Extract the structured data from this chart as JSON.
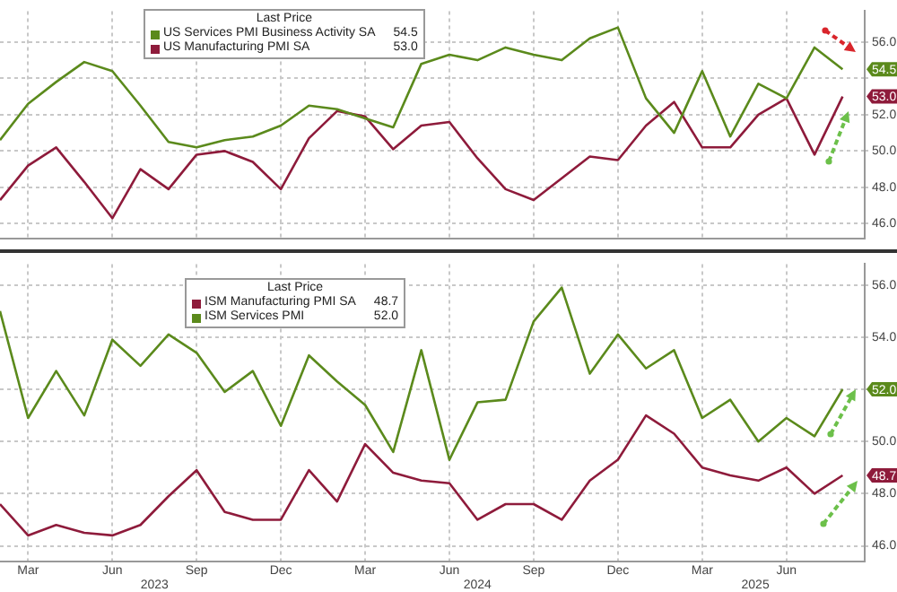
{
  "chart_data": [
    {
      "type": "line",
      "legend": "top left",
      "legend_title": "Last Price",
      "grid": true,
      "tick_labels": "y",
      "x": [
        "2023-02",
        "2023-03",
        "2023-04",
        "2023-05",
        "2023-06",
        "2023-07",
        "2023-08",
        "2023-09",
        "2023-10",
        "2023-11",
        "2023-12",
        "2024-01",
        "2024-02",
        "2024-03",
        "2024-04",
        "2024-05",
        "2024-06",
        "2024-07",
        "2024-08",
        "2024-09",
        "2024-10",
        "2024-11",
        "2024-12",
        "2025-01",
        "2025-02",
        "2025-03",
        "2025-04",
        "2025-05",
        "2025-06",
        "2025-07",
        "2025-08"
      ],
      "xlim": [
        "2023-02",
        "2025-08-25"
      ],
      "xticks": [
        {
          "value": "2023-03",
          "label": null
        },
        {
          "value": "2023-06",
          "label": null
        },
        {
          "value": "2023-09",
          "label": null
        },
        {
          "value": "2023-12",
          "label": null
        },
        {
          "value": "2024-03",
          "label": null
        },
        {
          "value": "2024-06",
          "label": null
        },
        {
          "value": "2024-09",
          "label": null
        },
        {
          "value": "2024-12",
          "label": null
        },
        {
          "value": "2025-03",
          "label": null
        },
        {
          "value": "2025-06",
          "label": null
        }
      ],
      "annotations": [
        "54.5",
        "53.0"
      ],
      "ylim": [
        45.2,
        57.7
      ],
      "yticks": [
        {
          "value": 46,
          "label": "46.0"
        },
        {
          "value": 48,
          "label": "48.0"
        },
        {
          "value": 50,
          "label": "50.0"
        },
        {
          "value": 52,
          "label": "52.0"
        },
        {
          "value": 54,
          "label": null
        },
        {
          "value": 56,
          "label": "56.0"
        }
      ],
      "series": [
        {
          "name": "US Services PMI Business Activity SA",
          "color": "#5b8a1c",
          "values": [
            50.6,
            52.6,
            53.8,
            54.9,
            54.4,
            52.5,
            50.5,
            50.2,
            50.6,
            50.8,
            51.4,
            52.5,
            52.3,
            51.8,
            51.3,
            54.8,
            55.3,
            55.0,
            55.7,
            55.3,
            55.0,
            56.2,
            56.8,
            52.9,
            51.0,
            54.4,
            50.8,
            53.7,
            52.9,
            55.7,
            54.5
          ]
        },
        {
          "name": "US Manufacturing PMI SA",
          "color": "#8e1b3b",
          "values": [
            47.3,
            49.2,
            50.2,
            48.3,
            46.3,
            49.0,
            47.9,
            49.8,
            50.0,
            49.4,
            47.9,
            50.7,
            52.2,
            51.9,
            50.1,
            51.4,
            51.6,
            49.6,
            47.9,
            47.3,
            48.5,
            49.7,
            49.5,
            51.4,
            52.7,
            50.2,
            50.2,
            52.0,
            52.9,
            49.8,
            53.0
          ]
        }
      ]
    },
    {
      "type": "line",
      "legend": "top left",
      "legend_title": "Last Price",
      "grid": true,
      "x": [
        "2023-02",
        "2023-03",
        "2023-04",
        "2023-05",
        "2023-06",
        "2023-07",
        "2023-08",
        "2023-09",
        "2023-10",
        "2023-11",
        "2023-12",
        "2024-01",
        "2024-02",
        "2024-03",
        "2024-04",
        "2024-05",
        "2024-06",
        "2024-07",
        "2024-08",
        "2024-09",
        "2024-10",
        "2024-11",
        "2024-12",
        "2025-01",
        "2025-02",
        "2025-03",
        "2025-04",
        "2025-05",
        "2025-06",
        "2025-07",
        "2025-08"
      ],
      "xlim": [
        "2023-02",
        "2025-08-25"
      ],
      "xticks": [
        {
          "value": "2023-03",
          "label": "Mar"
        },
        {
          "value": "2023-06",
          "label": "Jun"
        },
        {
          "value": "2023-09",
          "label": "Sep"
        },
        {
          "value": "2023-12",
          "label": "Dec"
        },
        {
          "value": "2024-03",
          "label": "Mar"
        },
        {
          "value": "2024-06",
          "label": "Jun"
        },
        {
          "value": "2024-09",
          "label": "Sep"
        },
        {
          "value": "2024-12",
          "label": "Dec"
        },
        {
          "value": "2025-03",
          "label": "Mar"
        },
        {
          "value": "2025-06",
          "label": "Jun"
        }
      ],
      "annotations": [
        "48.7",
        "52.0",
        "2023",
        "2024",
        "2025"
      ],
      "ylim": [
        45.4,
        56.8
      ],
      "yticks": [
        {
          "value": 46,
          "label": "46.0"
        },
        {
          "value": 48,
          "label": "48.0"
        },
        {
          "value": 50,
          "label": "50.0"
        },
        {
          "value": 52,
          "label": null
        },
        {
          "value": 54,
          "label": "54.0"
        },
        {
          "value": 56,
          "label": "56.0"
        }
      ],
      "series": [
        {
          "name": "ISM Manufacturing PMI SA",
          "color": "#8e1b3b",
          "values": [
            47.6,
            46.4,
            46.8,
            46.5,
            46.4,
            46.8,
            47.9,
            48.9,
            47.3,
            47.0,
            47.0,
            48.9,
            47.7,
            49.9,
            48.8,
            48.5,
            48.4,
            47.0,
            47.6,
            47.6,
            47.0,
            48.5,
            49.3,
            51.0,
            50.3,
            49.0,
            48.7,
            48.5,
            49.0,
            48.0,
            48.7
          ]
        },
        {
          "name": "ISM Services PMI",
          "color": "#5b8a1c",
          "values": [
            55.0,
            50.9,
            52.7,
            51.0,
            53.9,
            52.9,
            54.1,
            53.4,
            51.9,
            52.7,
            50.6,
            53.3,
            52.3,
            51.4,
            49.6,
            53.5,
            49.3,
            51.5,
            51.6,
            54.6,
            55.9,
            52.6,
            54.1,
            52.8,
            53.5,
            50.9,
            51.6,
            50.0,
            50.9,
            50.2,
            52.0
          ]
        }
      ]
    }
  ]
}
